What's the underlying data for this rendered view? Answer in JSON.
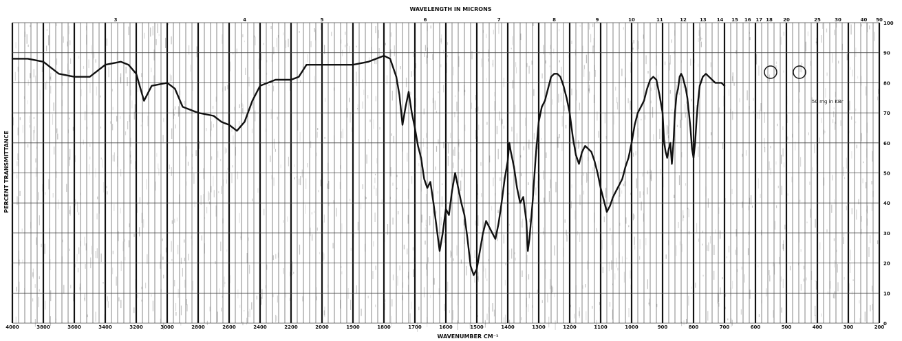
{
  "chart_data": {
    "type": "line",
    "title": "",
    "top_axis_label": "WAVELENGTH IN MICRONS",
    "xlabel": "WAVENUMBER CM⁻¹",
    "ylabel": "PERCENT TRANSMITTANCE",
    "x_ticks": [
      "4000",
      "3800",
      "3600",
      "3400",
      "3200",
      "3000",
      "2800",
      "2600",
      "2400",
      "2200",
      "2000",
      "1900",
      "1800",
      "1700",
      "1600",
      "1500",
      "1400",
      "1300",
      "1200",
      "1100",
      "1000",
      "900",
      "800",
      "700",
      "600",
      "500",
      "400",
      "300",
      "200"
    ],
    "top_ticks": [
      "3",
      "4",
      "5",
      "6",
      "7",
      "8",
      "9",
      "10",
      "11",
      "12",
      "13",
      "14",
      "15",
      "16",
      "17",
      "18",
      "20",
      "25",
      "30",
      "40",
      "50"
    ],
    "y_ticks": [
      "0",
      "10",
      "20",
      "30",
      "40",
      "50",
      "60",
      "70",
      "80",
      "90",
      "100"
    ],
    "ylim": [
      0,
      100
    ],
    "grid": true,
    "legend": "none",
    "series": [
      {
        "color": "#111111",
        "points": [
          [
            4000,
            88
          ],
          [
            3900,
            88
          ],
          [
            3800,
            87
          ],
          [
            3700,
            83
          ],
          [
            3600,
            82
          ],
          [
            3500,
            82
          ],
          [
            3450,
            84
          ],
          [
            3400,
            86
          ],
          [
            3300,
            87
          ],
          [
            3250,
            86
          ],
          [
            3200,
            83
          ],
          [
            3150,
            74
          ],
          [
            3100,
            79
          ],
          [
            3000,
            80
          ],
          [
            2950,
            78
          ],
          [
            2900,
            72
          ],
          [
            2800,
            70
          ],
          [
            2700,
            69
          ],
          [
            2650,
            67
          ],
          [
            2600,
            66
          ],
          [
            2550,
            64
          ],
          [
            2500,
            67
          ],
          [
            2450,
            74
          ],
          [
            2400,
            79
          ],
          [
            2300,
            81
          ],
          [
            2200,
            81
          ],
          [
            2150,
            82
          ],
          [
            2100,
            86
          ],
          [
            2000,
            86
          ],
          [
            1950,
            86
          ],
          [
            1900,
            86
          ],
          [
            1850,
            87
          ],
          [
            1800,
            89
          ],
          [
            1780,
            88
          ],
          [
            1760,
            82
          ],
          [
            1750,
            76
          ],
          [
            1740,
            66
          ],
          [
            1730,
            72
          ],
          [
            1720,
            77
          ],
          [
            1710,
            70
          ],
          [
            1700,
            65
          ],
          [
            1690,
            59
          ],
          [
            1680,
            55
          ],
          [
            1670,
            48
          ],
          [
            1660,
            45
          ],
          [
            1650,
            47
          ],
          [
            1640,
            40
          ],
          [
            1630,
            32
          ],
          [
            1620,
            24
          ],
          [
            1610,
            30
          ],
          [
            1600,
            38
          ],
          [
            1590,
            36
          ],
          [
            1580,
            44
          ],
          [
            1570,
            50
          ],
          [
            1560,
            45
          ],
          [
            1550,
            40
          ],
          [
            1540,
            36
          ],
          [
            1530,
            28
          ],
          [
            1520,
            19
          ],
          [
            1510,
            16
          ],
          [
            1500,
            18
          ],
          [
            1490,
            24
          ],
          [
            1480,
            30
          ],
          [
            1470,
            34
          ],
          [
            1460,
            32
          ],
          [
            1450,
            30
          ],
          [
            1440,
            28
          ],
          [
            1430,
            33
          ],
          [
            1420,
            40
          ],
          [
            1410,
            48
          ],
          [
            1400,
            54
          ],
          [
            1395,
            60
          ],
          [
            1390,
            57
          ],
          [
            1380,
            52
          ],
          [
            1370,
            45
          ],
          [
            1360,
            40
          ],
          [
            1350,
            42
          ],
          [
            1340,
            34
          ],
          [
            1335,
            24
          ],
          [
            1330,
            28
          ],
          [
            1320,
            40
          ],
          [
            1310,
            55
          ],
          [
            1300,
            67
          ],
          [
            1290,
            72
          ],
          [
            1280,
            74
          ],
          [
            1270,
            78
          ],
          [
            1260,
            82
          ],
          [
            1250,
            83
          ],
          [
            1240,
            83
          ],
          [
            1230,
            82
          ],
          [
            1220,
            79
          ],
          [
            1210,
            75
          ],
          [
            1200,
            70
          ],
          [
            1190,
            62
          ],
          [
            1180,
            56
          ],
          [
            1170,
            53
          ],
          [
            1160,
            57
          ],
          [
            1150,
            59
          ],
          [
            1140,
            58
          ],
          [
            1130,
            57
          ],
          [
            1120,
            54
          ],
          [
            1110,
            50
          ],
          [
            1100,
            45
          ],
          [
            1090,
            41
          ],
          [
            1080,
            37
          ],
          [
            1070,
            39
          ],
          [
            1060,
            42
          ],
          [
            1050,
            44
          ],
          [
            1040,
            46
          ],
          [
            1030,
            48
          ],
          [
            1020,
            52
          ],
          [
            1010,
            55
          ],
          [
            1000,
            60
          ],
          [
            990,
            66
          ],
          [
            980,
            70
          ],
          [
            970,
            72
          ],
          [
            960,
            74
          ],
          [
            950,
            78
          ],
          [
            940,
            81
          ],
          [
            930,
            82
          ],
          [
            920,
            81
          ],
          [
            910,
            76
          ],
          [
            900,
            70
          ],
          [
            895,
            60
          ],
          [
            890,
            57
          ],
          [
            885,
            55
          ],
          [
            880,
            58
          ],
          [
            875,
            60
          ],
          [
            870,
            53
          ],
          [
            865,
            60
          ],
          [
            860,
            70
          ],
          [
            855,
            76
          ],
          [
            850,
            78
          ],
          [
            845,
            82
          ],
          [
            840,
            83
          ],
          [
            835,
            82
          ],
          [
            830,
            80
          ],
          [
            825,
            78
          ],
          [
            820,
            75
          ],
          [
            815,
            70
          ],
          [
            810,
            65
          ],
          [
            805,
            58
          ],
          [
            800,
            55
          ],
          [
            795,
            60
          ],
          [
            790,
            68
          ],
          [
            785,
            74
          ],
          [
            780,
            79
          ],
          [
            770,
            82
          ],
          [
            760,
            83
          ],
          [
            750,
            82
          ],
          [
            740,
            81
          ],
          [
            730,
            80
          ],
          [
            720,
            80
          ],
          [
            710,
            80
          ],
          [
            700,
            79
          ]
        ]
      }
    ],
    "annotations": [
      "50 mg in KBr"
    ]
  }
}
